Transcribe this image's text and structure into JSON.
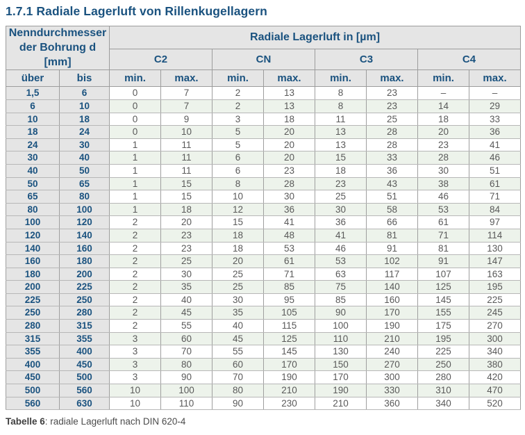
{
  "title": "1.7.1 Radiale Lagerluft von Rillenkugellagern",
  "table": {
    "bore_header_line1": "Nenndurchmesser",
    "bore_header_line2": "der Bohrung d [mm]",
    "clearance_header": "Radiale Lagerluft in [µm]",
    "classes": [
      "C2",
      "CN",
      "C3",
      "C4"
    ],
    "col_over_label": "über",
    "col_to_label": "bis",
    "min_label": "min.",
    "max_label": "max.",
    "rows": [
      [
        "1,5",
        "6",
        "0",
        "7",
        "2",
        "13",
        "8",
        "23",
        "–",
        "–"
      ],
      [
        "6",
        "10",
        "0",
        "7",
        "2",
        "13",
        "8",
        "23",
        "14",
        "29"
      ],
      [
        "10",
        "18",
        "0",
        "9",
        "3",
        "18",
        "11",
        "25",
        "18",
        "33"
      ],
      [
        "18",
        "24",
        "0",
        "10",
        "5",
        "20",
        "13",
        "28",
        "20",
        "36"
      ],
      [
        "24",
        "30",
        "1",
        "11",
        "5",
        "20",
        "13",
        "28",
        "23",
        "41"
      ],
      [
        "30",
        "40",
        "1",
        "11",
        "6",
        "20",
        "15",
        "33",
        "28",
        "46"
      ],
      [
        "40",
        "50",
        "1",
        "11",
        "6",
        "23",
        "18",
        "36",
        "30",
        "51"
      ],
      [
        "50",
        "65",
        "1",
        "15",
        "8",
        "28",
        "23",
        "43",
        "38",
        "61"
      ],
      [
        "65",
        "80",
        "1",
        "15",
        "10",
        "30",
        "25",
        "51",
        "46",
        "71"
      ],
      [
        "80",
        "100",
        "1",
        "18",
        "12",
        "36",
        "30",
        "58",
        "53",
        "84"
      ],
      [
        "100",
        "120",
        "2",
        "20",
        "15",
        "41",
        "36",
        "66",
        "61",
        "97"
      ],
      [
        "120",
        "140",
        "2",
        "23",
        "18",
        "48",
        "41",
        "81",
        "71",
        "114"
      ],
      [
        "140",
        "160",
        "2",
        "23",
        "18",
        "53",
        "46",
        "91",
        "81",
        "130"
      ],
      [
        "160",
        "180",
        "2",
        "25",
        "20",
        "61",
        "53",
        "102",
        "91",
        "147"
      ],
      [
        "180",
        "200",
        "2",
        "30",
        "25",
        "71",
        "63",
        "117",
        "107",
        "163"
      ],
      [
        "200",
        "225",
        "2",
        "35",
        "25",
        "85",
        "75",
        "140",
        "125",
        "195"
      ],
      [
        "225",
        "250",
        "2",
        "40",
        "30",
        "95",
        "85",
        "160",
        "145",
        "225"
      ],
      [
        "250",
        "280",
        "2",
        "45",
        "35",
        "105",
        "90",
        "170",
        "155",
        "245"
      ],
      [
        "280",
        "315",
        "2",
        "55",
        "40",
        "115",
        "100",
        "190",
        "175",
        "270"
      ],
      [
        "315",
        "355",
        "3",
        "60",
        "45",
        "125",
        "110",
        "210",
        "195",
        "300"
      ],
      [
        "355",
        "400",
        "3",
        "70",
        "55",
        "145",
        "130",
        "240",
        "225",
        "340"
      ],
      [
        "400",
        "450",
        "3",
        "80",
        "60",
        "170",
        "150",
        "270",
        "250",
        "380"
      ],
      [
        "450",
        "500",
        "3",
        "90",
        "70",
        "190",
        "170",
        "300",
        "280",
        "420"
      ],
      [
        "500",
        "560",
        "10",
        "100",
        "80",
        "210",
        "190",
        "330",
        "310",
        "470"
      ],
      [
        "560",
        "630",
        "10",
        "110",
        "90",
        "230",
        "210",
        "360",
        "340",
        "520"
      ]
    ]
  },
  "caption": {
    "label": "Tabelle 6",
    "text": ": radiale Lagerluft nach DIN 620-4"
  },
  "colors": {
    "accent_blue": "#1a527f",
    "header_bg": "#e5e5e5",
    "stripe_green": "#edf3eb",
    "value_text": "#595959"
  }
}
